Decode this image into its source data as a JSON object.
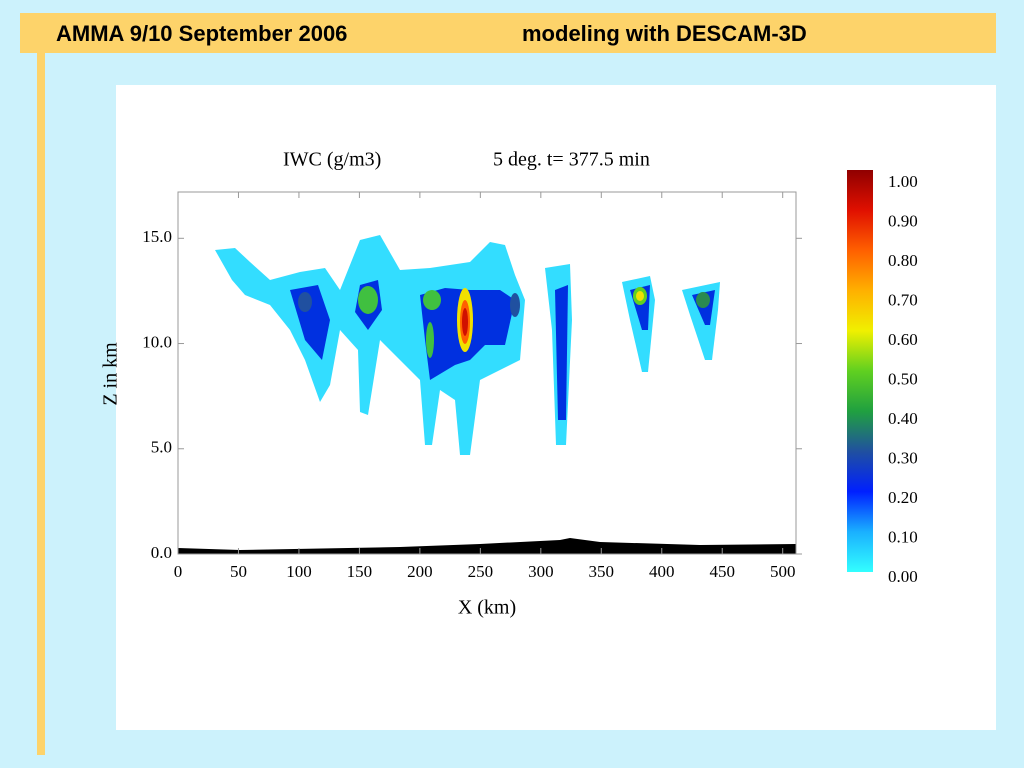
{
  "header": {
    "title": "AMMA 9/10 September 2006",
    "subtitle": "modeling with DESCAM-3D"
  },
  "chart_data": {
    "type": "contour",
    "title": "IWC (g/m3)",
    "subtitle": "5 deg. t= 377.5 min",
    "xlabel": "X (km)",
    "ylabel": "Z in km",
    "xlim": [
      0,
      511
    ],
    "xticks": [
      0,
      50,
      100,
      150,
      200,
      250,
      300,
      350,
      400,
      450,
      500
    ],
    "ylim": [
      0,
      17.2
    ],
    "yticks": [
      {
        "value": 0,
        "label": "0.0"
      },
      {
        "value": 5,
        "label": "5.0"
      },
      {
        "value": 10,
        "label": "10.0"
      },
      {
        "value": 15,
        "label": "15.0"
      }
    ],
    "colorbar": {
      "lim": [
        0,
        1
      ],
      "ticks": [
        {
          "value": 0,
          "label": "0.00"
        },
        {
          "value": 0.1,
          "label": "0.10"
        },
        {
          "value": 0.2,
          "label": "0.20"
        },
        {
          "value": 0.3,
          "label": "0.30"
        },
        {
          "value": 0.4,
          "label": "0.40"
        },
        {
          "value": 0.5,
          "label": "0.50"
        },
        {
          "value": 0.6,
          "label": "0.60"
        },
        {
          "value": 0.7,
          "label": "0.70"
        },
        {
          "value": 0.8,
          "label": "0.80"
        },
        {
          "value": 0.9,
          "label": "0.90"
        },
        {
          "value": 1,
          "label": "1.00"
        }
      ],
      "colors": [
        "#33ffff",
        "#1ab0ff",
        "#0020ff",
        "#2050a0",
        "#20a040",
        "#60d020",
        "#f0f000",
        "#ffb000",
        "#ff6000",
        "#e01000",
        "#900000"
      ]
    }
  }
}
